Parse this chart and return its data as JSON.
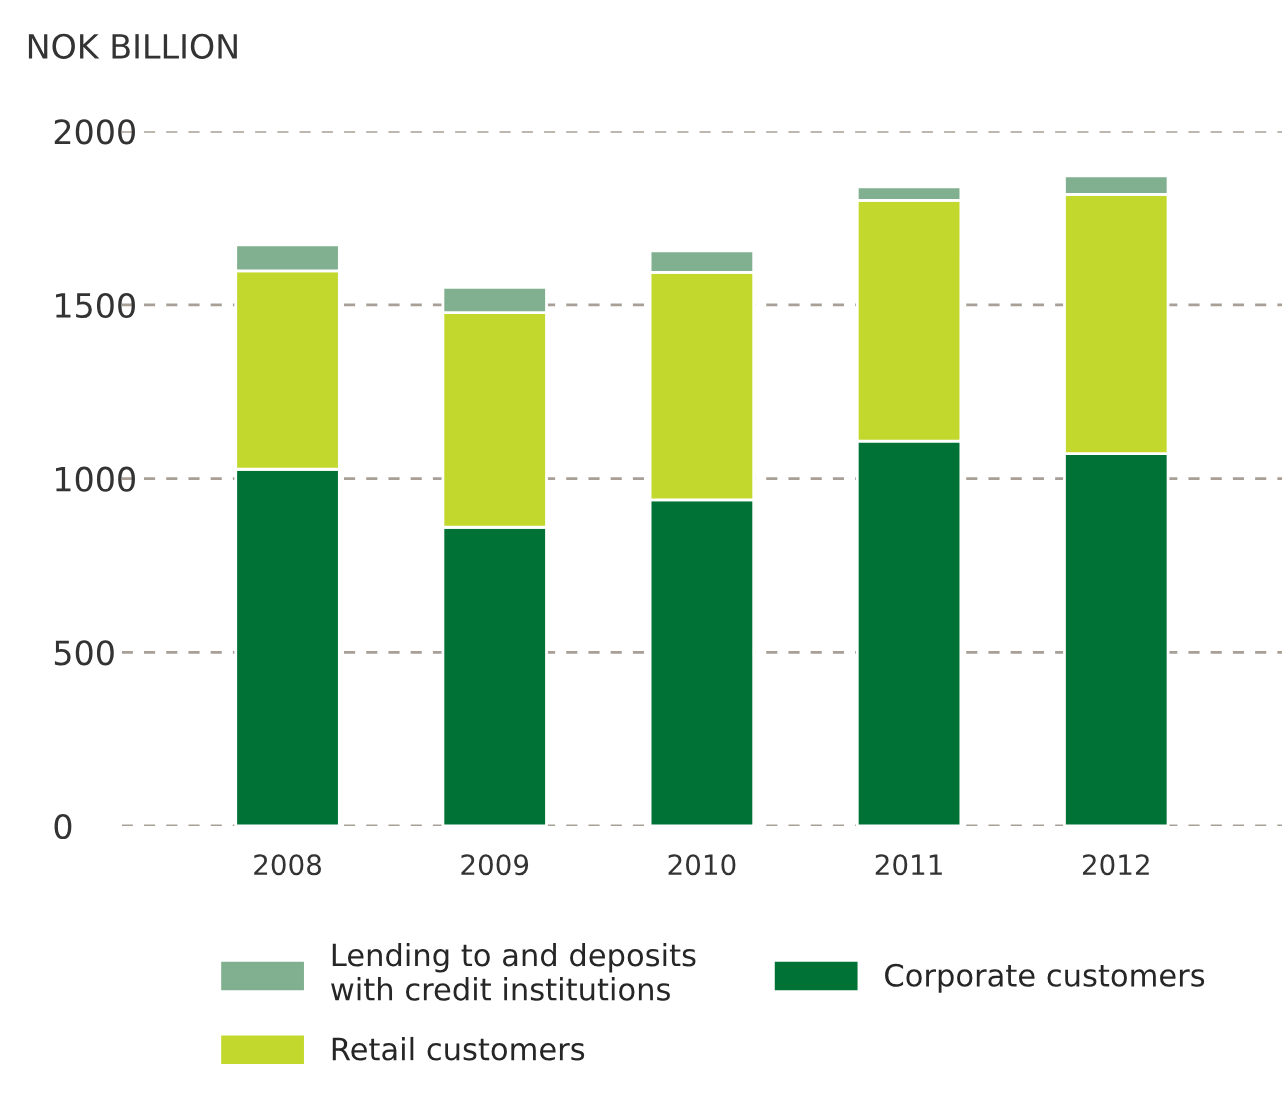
{
  "chart_data": {
    "type": "bar",
    "ylabel": "NOK BILLION",
    "categories": [
      "2008",
      "2009",
      "2010",
      "2011",
      "2012"
    ],
    "stacked": true,
    "series": [
      {
        "name": "Corporate customers",
        "color": "#007236",
        "values": [
          1027,
          860,
          939,
          1108,
          1072
        ]
      },
      {
        "name": "Retail customers",
        "color": "#c2d82d",
        "values": [
          571,
          618,
          655,
          693,
          746
        ]
      },
      {
        "name": "Lending to and deposits\nwith credit institutions",
        "color": "#80b08f",
        "values": [
          75,
          73,
          62,
          39,
          54
        ]
      }
    ],
    "ylim": [
      0,
      2000
    ],
    "yticks": [
      0,
      500,
      1000,
      1500,
      2000
    ],
    "grid": "y",
    "legend": "bottom"
  }
}
